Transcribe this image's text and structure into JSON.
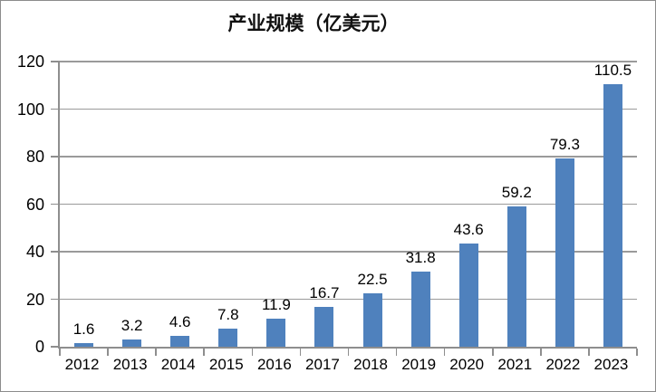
{
  "title": "产业规模（亿美元）",
  "chart_data": {
    "type": "bar",
    "title": "产业规模（亿美元）",
    "categories": [
      "2012",
      "2013",
      "2014",
      "2015",
      "2016",
      "2017",
      "2018",
      "2019",
      "2020",
      "2021",
      "2022",
      "2023"
    ],
    "values": [
      1.6,
      3.2,
      4.6,
      7.8,
      11.9,
      16.7,
      22.5,
      31.8,
      43.6,
      59.2,
      79.3,
      110.5
    ],
    "data_labels": [
      "1.6",
      "3.2",
      "4.6",
      "7.8",
      "11.9",
      "16.7",
      "22.5",
      "31.8",
      "43.6",
      "59.2",
      "79.3",
      "110.5"
    ],
    "xlabel": "",
    "ylabel": "",
    "ylim": [
      0,
      120
    ],
    "yticks": [
      0,
      20,
      40,
      60,
      80,
      100,
      120
    ],
    "grid": true,
    "legend": "none",
    "bar_color": "#4f81bd",
    "gridline_color": "#9a9a9a",
    "axis_color": "#8e8e8e",
    "text_color": "#000000",
    "background_color": "#ffffff"
  }
}
